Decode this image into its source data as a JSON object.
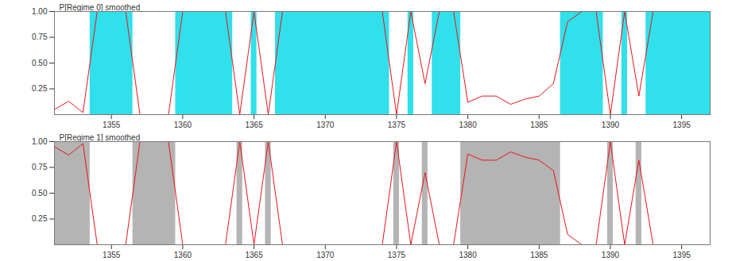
{
  "chart_data": [
    {
      "type": "line",
      "grid": false,
      "x": [
        1351,
        1352,
        1353,
        1354,
        1355,
        1356,
        1357,
        1358,
        1359,
        1360,
        1361,
        1362,
        1363,
        1364,
        1365,
        1366,
        1367,
        1368,
        1369,
        1370,
        1371,
        1372,
        1373,
        1374,
        1375,
        1376,
        1377,
        1378,
        1379,
        1380,
        1381,
        1382,
        1383,
        1384,
        1385,
        1386,
        1387,
        1388,
        1389,
        1390,
        1391,
        1392,
        1393,
        1394,
        1395,
        1396,
        1397
      ],
      "series": [
        {
          "name": "P[Regime 0] smoothed",
          "color": "#e8141b",
          "values": [
            0.05,
            0.13,
            0.02,
            1,
            1,
            1,
            0,
            0,
            0,
            1,
            1,
            1,
            1,
            0,
            1,
            0,
            1,
            1,
            1,
            1,
            1,
            1,
            1,
            1,
            0,
            1,
            0.3,
            1,
            1,
            0.12,
            0.18,
            0.18,
            0.1,
            0.15,
            0.18,
            0.3,
            0.9,
            1,
            1,
            0,
            1,
            0.18,
            1,
            1,
            1,
            1,
            1
          ]
        }
      ],
      "regime_spans": [
        [
          1353.5,
          1356.5
        ],
        [
          1359.5,
          1363.5
        ],
        [
          1364.8,
          1365.2
        ],
        [
          1366.5,
          1374.5
        ],
        [
          1375.8,
          1376.2
        ],
        [
          1377.5,
          1379.5
        ],
        [
          1386.5,
          1389.5
        ],
        [
          1390.8,
          1391.2
        ],
        [
          1392.5,
          1397
        ]
      ],
      "span_color": "#30e0ea",
      "xlim": [
        1351,
        1397
      ],
      "xticks": [
        1355,
        1360,
        1365,
        1370,
        1375,
        1380,
        1385,
        1390,
        1395
      ],
      "ylim": [
        0,
        1
      ],
      "yticks": [
        0.25,
        {
          "value": 0.5,
          "label": "0.50"
        },
        0.75,
        {
          "value": 1,
          "label": "1.00"
        }
      ]
    },
    {
      "type": "line",
      "grid": false,
      "x": [
        1351,
        1352,
        1353,
        1354,
        1355,
        1356,
        1357,
        1358,
        1359,
        1360,
        1361,
        1362,
        1363,
        1364,
        1365,
        1366,
        1367,
        1368,
        1369,
        1370,
        1371,
        1372,
        1373,
        1374,
        1375,
        1376,
        1377,
        1378,
        1379,
        1380,
        1381,
        1382,
        1383,
        1384,
        1385,
        1386,
        1387,
        1388,
        1389,
        1390,
        1391,
        1392,
        1393,
        1394,
        1395,
        1396,
        1397
      ],
      "series": [
        {
          "name": "P[Regime 1] smoothed",
          "color": "#e8141b",
          "values": [
            0.95,
            0.87,
            0.98,
            0,
            0,
            0,
            1,
            1,
            1,
            0,
            0,
            0,
            0,
            1,
            0,
            1,
            0,
            0,
            0,
            0,
            0,
            0,
            0,
            0,
            1,
            0,
            0.7,
            0,
            0,
            0.88,
            0.82,
            0.82,
            0.9,
            0.85,
            0.82,
            0.72,
            0.1,
            0,
            0,
            1,
            0,
            0.82,
            0,
            0,
            0,
            0,
            0
          ]
        }
      ],
      "regime_spans": [
        [
          1351,
          1353.5
        ],
        [
          1356.5,
          1359.5
        ],
        [
          1363.8,
          1364.2
        ],
        [
          1365.8,
          1366.2
        ],
        [
          1374.8,
          1375.2
        ],
        [
          1376.8,
          1377.2
        ],
        [
          1379.5,
          1386.5
        ],
        [
          1389.8,
          1390.2
        ],
        [
          1391.8,
          1392.2
        ]
      ],
      "span_color": "#b4b4b4",
      "xlim": [
        1351,
        1397
      ],
      "xticks": [
        1355,
        1360,
        1365,
        1370,
        1375,
        1380,
        1385,
        1390,
        1395
      ],
      "ylim": [
        0,
        1
      ],
      "yticks": [
        0.25,
        {
          "value": 0.5,
          "label": "0.50"
        },
        0.75,
        {
          "value": 1,
          "label": "1.00"
        }
      ]
    }
  ]
}
